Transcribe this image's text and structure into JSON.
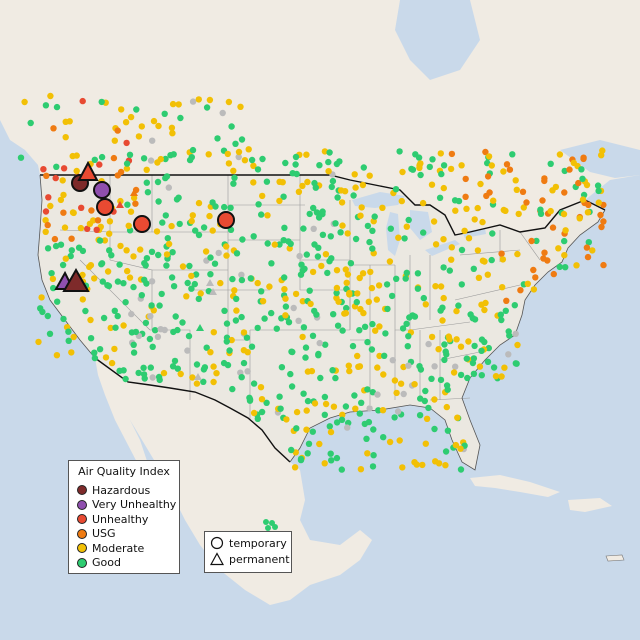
{
  "legend": {
    "title": "Air Quality Index",
    "categories": [
      {
        "label": "Hazardous",
        "color": "#7e2a2a"
      },
      {
        "label": "Very Unhealthy",
        "color": "#8f4fae"
      },
      {
        "label": "Unhealthy",
        "color": "#e84a32"
      },
      {
        "label": "USG",
        "color": "#ef7b12"
      },
      {
        "label": "Moderate",
        "color": "#f2c005"
      },
      {
        "label": "Good",
        "color": "#2ecc71"
      }
    ]
  },
  "shape_legend": {
    "temporary_label": "temporary",
    "permanent_label": "permanent"
  },
  "colors": {
    "ocean": "#c9d9ea",
    "land": "#f0ebe3",
    "us_land": "#ebe8e1",
    "border": "#111111",
    "state_line": "#999999",
    "no_data": "#bbbbbb"
  }
}
